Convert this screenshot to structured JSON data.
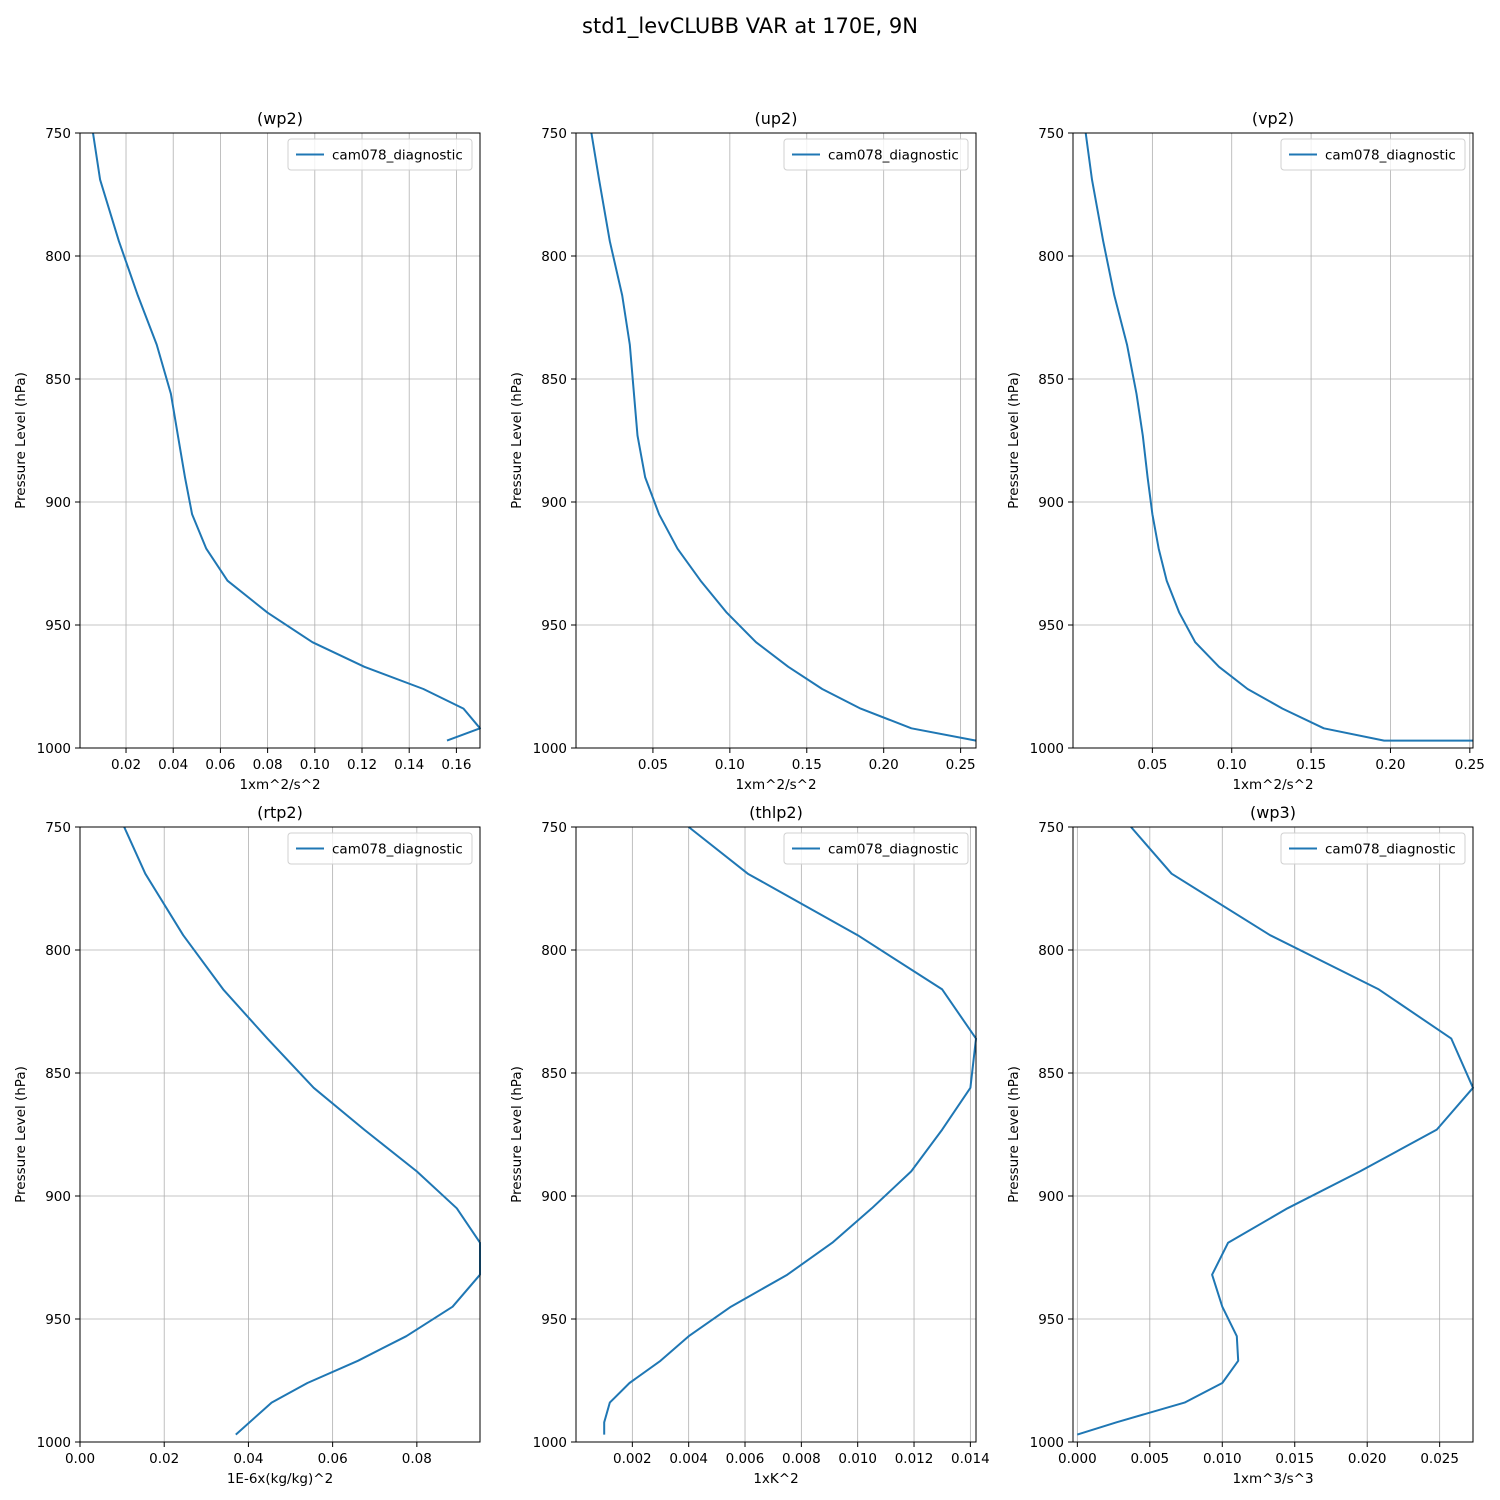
{
  "figure": {
    "title": "std1_levCLUBB VAR at 170E, 9N",
    "line_color": "#1f77b4"
  },
  "chart_data": [
    {
      "type": "line",
      "title": "(wp2)",
      "xlabel": "1xm^2/s^2",
      "ylabel": "Pressure Level (hPa)",
      "xlim": [
        0.0005,
        0.17
      ],
      "ylim": [
        1000,
        750
      ],
      "xticks": [
        0.02,
        0.04,
        0.06,
        0.08,
        0.1,
        0.12,
        0.14,
        0.16
      ],
      "xtick_labels": [
        "0.02",
        "0.04",
        "0.06",
        "0.08",
        "0.10",
        "0.12",
        "0.14",
        "0.16"
      ],
      "yticks": [
        750,
        800,
        850,
        900,
        950,
        1000
      ],
      "ytick_labels": [
        "750",
        "800",
        "850",
        "900",
        "950",
        "1000"
      ],
      "grid": true,
      "legend": "top-right",
      "series": [
        {
          "name": "cam078_diagnostic",
          "x": [
            0.006,
            0.009,
            0.017,
            0.025,
            0.033,
            0.039,
            0.042,
            0.045,
            0.048,
            0.054,
            0.063,
            0.08,
            0.099,
            0.121,
            0.146,
            0.163,
            0.17,
            0.156
          ],
          "y": [
            750,
            769,
            794,
            816,
            836,
            856,
            873,
            890,
            905,
            919,
            932,
            945,
            957,
            967,
            976,
            984,
            992,
            997
          ]
        }
      ]
    },
    {
      "type": "line",
      "title": "(up2)",
      "xlabel": "1xm^2/s^2",
      "ylabel": "Pressure Level (hPa)",
      "xlim": [
        0.0,
        0.26
      ],
      "ylim": [
        1000,
        750
      ],
      "xticks": [
        0.05,
        0.1,
        0.15,
        0.2,
        0.25
      ],
      "xtick_labels": [
        "0.05",
        "0.10",
        "0.15",
        "0.20",
        "0.25"
      ],
      "yticks": [
        750,
        800,
        850,
        900,
        950,
        1000
      ],
      "ytick_labels": [
        "750",
        "800",
        "850",
        "900",
        "950",
        "1000"
      ],
      "grid": true,
      "legend": "top-right",
      "series": [
        {
          "name": "cam078_diagnostic",
          "x": [
            0.01,
            0.015,
            0.022,
            0.03,
            0.035,
            0.04,
            0.045,
            0.054,
            0.066,
            0.081,
            0.098,
            0.117,
            0.138,
            0.16,
            0.185,
            0.218,
            0.26
          ],
          "y": [
            750,
            769,
            794,
            816,
            836,
            873,
            890,
            905,
            919,
            932,
            945,
            957,
            967,
            976,
            984,
            992,
            997
          ]
        }
      ]
    },
    {
      "type": "line",
      "title": "(vp2)",
      "xlabel": "1xm^2/s^2",
      "ylabel": "Pressure Level (hPa)",
      "xlim": [
        0.0,
        0.252
      ],
      "ylim": [
        1000,
        750
      ],
      "xticks": [
        0.05,
        0.1,
        0.15,
        0.2,
        0.25
      ],
      "xtick_labels": [
        "0.05",
        "0.10",
        "0.15",
        "0.20",
        "0.25"
      ],
      "yticks": [
        750,
        800,
        850,
        900,
        950,
        1000
      ],
      "ytick_labels": [
        "750",
        "800",
        "850",
        "900",
        "950",
        "1000"
      ],
      "grid": true,
      "legend": "top-right",
      "series": [
        {
          "name": "cam078_diagnostic",
          "x": [
            0.008,
            0.012,
            0.019,
            0.026,
            0.034,
            0.04,
            0.044,
            0.047,
            0.05,
            0.054,
            0.059,
            0.067,
            0.077,
            0.092,
            0.11,
            0.132,
            0.158,
            0.196,
            0.252
          ],
          "y": [
            750,
            769,
            794,
            816,
            836,
            856,
            873,
            890,
            905,
            919,
            932,
            945,
            957,
            967,
            976,
            984,
            992,
            997,
            997
          ]
        }
      ]
    },
    {
      "type": "line",
      "title": "(rtp2)",
      "xlabel": "1E-6x(kg/kg)^2",
      "ylabel": "Pressure Level (hPa)",
      "xlim": [
        0.0,
        0.095
      ],
      "ylim": [
        1000,
        750
      ],
      "xticks": [
        0.0,
        0.02,
        0.04,
        0.06,
        0.08
      ],
      "xtick_labels": [
        "0.00",
        "0.02",
        "0.04",
        "0.06",
        "0.08"
      ],
      "yticks": [
        750,
        800,
        850,
        900,
        950,
        1000
      ],
      "ytick_labels": [
        "750",
        "800",
        "850",
        "900",
        "950",
        "1000"
      ],
      "grid": true,
      "legend": "top-right",
      "series": [
        {
          "name": "cam078_diagnostic",
          "x": [
            0.0105,
            0.0155,
            0.0245,
            0.034,
            0.0445,
            0.0555,
            0.0675,
            0.08,
            0.0895,
            0.095,
            0.095,
            0.0885,
            0.0775,
            0.066,
            0.054,
            0.0455,
            0.037
          ],
          "y": [
            750,
            769,
            794,
            816,
            836,
            856,
            873,
            890,
            905,
            919,
            932,
            945,
            957,
            967,
            976,
            984,
            997
          ]
        }
      ]
    },
    {
      "type": "line",
      "title": "(thlp2)",
      "xlabel": "1xK^2",
      "ylabel": "Pressure Level (hPa)",
      "xlim": [
        0.0,
        0.0142
      ],
      "ylim": [
        1000,
        750
      ],
      "xticks": [
        0.002,
        0.004,
        0.006,
        0.008,
        0.01,
        0.012,
        0.014
      ],
      "xtick_labels": [
        "0.002",
        "0.004",
        "0.006",
        "0.008",
        "0.010",
        "0.012",
        "0.014"
      ],
      "yticks": [
        750,
        800,
        850,
        900,
        950,
        1000
      ],
      "ytick_labels": [
        "750",
        "800",
        "850",
        "900",
        "950",
        "1000"
      ],
      "grid": true,
      "legend": "top-right",
      "series": [
        {
          "name": "cam078_diagnostic",
          "x": [
            0.004,
            0.0061,
            0.01,
            0.013,
            0.0142,
            0.014,
            0.013,
            0.0119,
            0.0105,
            0.0091,
            0.0075,
            0.0055,
            0.004,
            0.003,
            0.0019,
            0.0012,
            0.001,
            0.001
          ],
          "y": [
            750,
            769,
            794,
            816,
            836,
            856,
            873,
            890,
            905,
            919,
            932,
            945,
            957,
            967,
            976,
            984,
            992,
            997
          ]
        }
      ]
    },
    {
      "type": "line",
      "title": "(wp3)",
      "xlabel": "1xm^3/s^3",
      "ylabel": "Pressure Level (hPa)",
      "xlim": [
        -0.0003,
        0.0273
      ],
      "ylim": [
        1000,
        750
      ],
      "xticks": [
        0.0,
        0.005,
        0.01,
        0.015,
        0.02,
        0.025
      ],
      "xtick_labels": [
        "0.000",
        "0.005",
        "0.010",
        "0.015",
        "0.020",
        "0.025"
      ],
      "yticks": [
        750,
        800,
        850,
        900,
        950,
        1000
      ],
      "ytick_labels": [
        "750",
        "800",
        "850",
        "900",
        "950",
        "1000"
      ],
      "grid": true,
      "legend": "top-right",
      "series": [
        {
          "name": "cam078_diagnostic",
          "x": [
            0.0037,
            0.0065,
            0.0133,
            0.0208,
            0.0258,
            0.0273,
            0.0248,
            0.0195,
            0.0145,
            0.0104,
            0.0093,
            0.01,
            0.011,
            0.0111,
            0.01,
            0.0074,
            0.0027,
            0.0
          ],
          "y": [
            750,
            769,
            794,
            816,
            836,
            856,
            873,
            890,
            905,
            919,
            932,
            945,
            957,
            967,
            976,
            984,
            992,
            997
          ]
        }
      ]
    }
  ]
}
